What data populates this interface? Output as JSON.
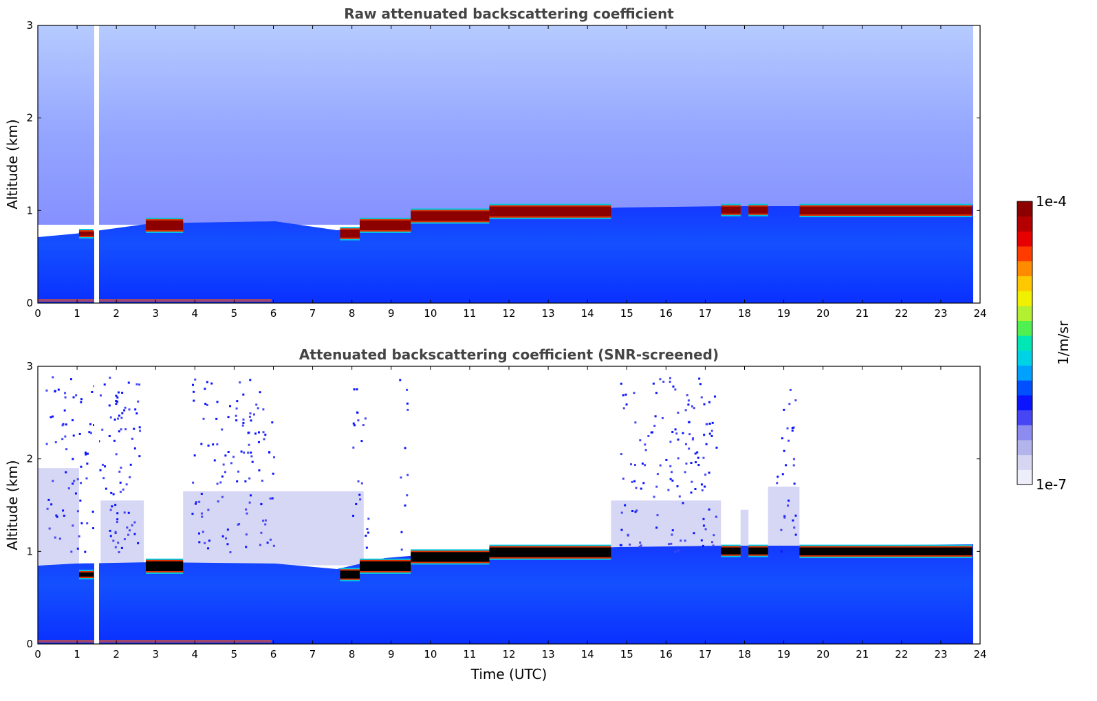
{
  "chart_data": [
    {
      "type": "heatmap",
      "title": "Raw attenuated backscattering coefficient",
      "xlabel": "",
      "ylabel": "Altitude (km)",
      "xlim": [
        0,
        24
      ],
      "ylim": [
        0,
        3
      ],
      "xticks": [
        0,
        1,
        2,
        3,
        4,
        5,
        6,
        7,
        8,
        9,
        10,
        11,
        12,
        13,
        14,
        15,
        16,
        17,
        18,
        19,
        20,
        21,
        22,
        23,
        24
      ],
      "yticks": [
        0,
        1,
        2,
        3
      ],
      "data_gaps_hours": [
        [
          1.42,
          1.55
        ],
        [
          23.8,
          24
        ]
      ],
      "cloud_layer": [
        {
          "t_start": 1.05,
          "t_end": 1.42,
          "bottom_km": 0.72,
          "top_km": 0.78
        },
        {
          "t_start": 2.75,
          "t_end": 3.7,
          "bottom_km": 0.78,
          "top_km": 0.9
        },
        {
          "t_start": 7.7,
          "t_end": 8.2,
          "bottom_km": 0.7,
          "top_km": 0.8
        },
        {
          "t_start": 8.2,
          "t_end": 9.5,
          "bottom_km": 0.78,
          "top_km": 0.9
        },
        {
          "t_start": 9.5,
          "t_end": 11.5,
          "bottom_km": 0.88,
          "top_km": 1.0
        },
        {
          "t_start": 11.5,
          "t_end": 14.6,
          "bottom_km": 0.93,
          "top_km": 1.05
        },
        {
          "t_start": 17.4,
          "t_end": 17.9,
          "bottom_km": 0.96,
          "top_km": 1.05
        },
        {
          "t_start": 18.1,
          "t_end": 18.6,
          "bottom_km": 0.96,
          "top_km": 1.05
        },
        {
          "t_start": 19.4,
          "t_end": 23.8,
          "bottom_km": 0.95,
          "top_km": 1.05
        }
      ]
    },
    {
      "type": "heatmap",
      "title": "Attenuated backscattering coefficient (SNR-screened)",
      "xlabel": "Time (UTC)",
      "ylabel": "Altitude (km)",
      "xlim": [
        0,
        24
      ],
      "ylim": [
        0,
        3
      ],
      "xticks": [
        0,
        1,
        2,
        3,
        4,
        5,
        6,
        7,
        8,
        9,
        10,
        11,
        12,
        13,
        14,
        15,
        16,
        17,
        18,
        19,
        20,
        21,
        22,
        23,
        24
      ],
      "yticks": [
        0,
        1,
        2,
        3
      ],
      "data_gaps_hours": [
        [
          1.42,
          1.55
        ],
        [
          23.8,
          24
        ]
      ],
      "cloud_layer_saturated_color": "#000000"
    }
  ],
  "colorbar": {
    "label": "1/m/sr",
    "min_label": "1e-7",
    "max_label": "1e-4",
    "colors": [
      "#eeeefa",
      "#d6d6f2",
      "#b4b4ec",
      "#8c8cf0",
      "#4646f5",
      "#0a14ff",
      "#0050ff",
      "#00a0ff",
      "#00d2e6",
      "#00e6b4",
      "#50f050",
      "#b4f032",
      "#f0f000",
      "#ffc800",
      "#ff8c00",
      "#ff3c00",
      "#e60000",
      "#b40000",
      "#8c0000"
    ]
  },
  "colors": {
    "background": "#ffffff",
    "title": "#444444",
    "axis": "#000000"
  }
}
